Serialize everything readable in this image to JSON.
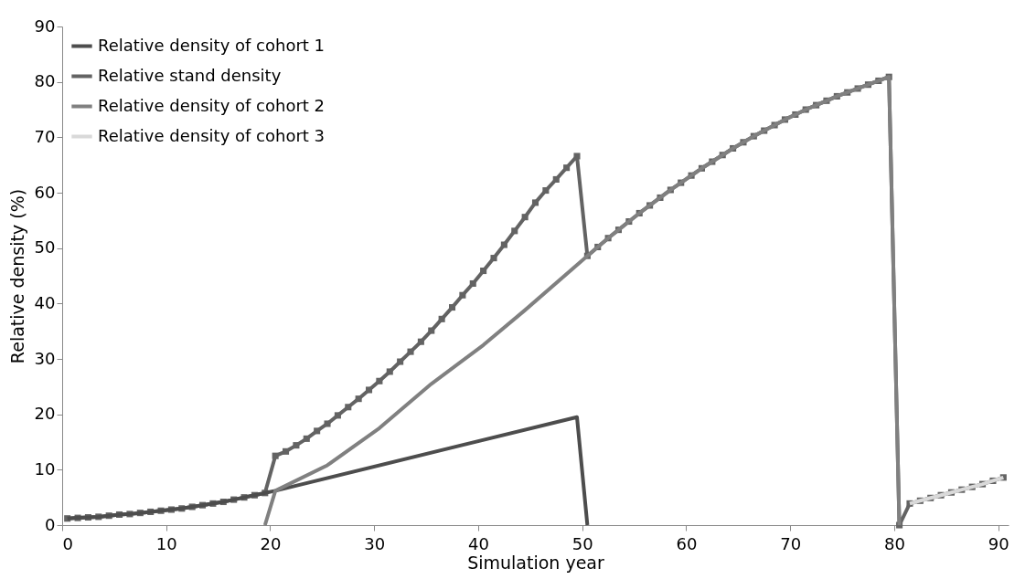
{
  "chart_data": {
    "type": "line",
    "xlabel": "Simulation year",
    "ylabel": "Relative density (%)",
    "xlim": [
      0,
      91
    ],
    "xticks": [
      0,
      10,
      20,
      30,
      40,
      50,
      60,
      70,
      80,
      90
    ],
    "ylim": [
      0,
      90
    ],
    "yticks": [
      0,
      10,
      20,
      30,
      40,
      50,
      60,
      70,
      80,
      90
    ],
    "grid": false,
    "legend": "top left",
    "line_style": "solid",
    "series": [
      {
        "name": "Relative stand density",
        "color": "#636363",
        "marker": "square",
        "x": [
          0.5,
          1.5,
          2.5,
          3.5,
          4.5,
          5.5,
          6.5,
          7.5,
          8.5,
          9.5,
          10.5,
          11.5,
          12.5,
          13.5,
          14.5,
          15.5,
          16.5,
          17.5,
          18.5,
          19.5,
          20.5,
          21.5,
          22.5,
          23.5,
          24.5,
          25.5,
          26.5,
          27.5,
          28.5,
          29.5,
          30.5,
          31.5,
          32.5,
          33.5,
          34.5,
          35.5,
          36.5,
          37.5,
          38.5,
          39.5,
          40.5,
          41.5,
          42.5,
          43.5,
          44.5,
          45.5,
          46.5,
          47.5,
          48.5,
          49.5,
          50.5,
          51.5,
          52.5,
          53.5,
          54.5,
          55.5,
          56.5,
          57.5,
          58.5,
          59.5,
          60.5,
          61.5,
          62.5,
          63.5,
          64.5,
          65.5,
          66.5,
          67.5,
          68.5,
          69.5,
          70.5,
          71.5,
          72.5,
          73.5,
          74.5,
          75.5,
          76.5,
          77.5,
          78.5,
          79.5,
          80.5,
          81.5,
          82.5,
          83.5,
          84.5,
          85.5,
          86.5,
          87.5,
          88.5,
          89.5,
          90.5
        ],
        "values": [
          1.2,
          1.3,
          1.4,
          1.5,
          1.7,
          1.9,
          2.0,
          2.2,
          2.4,
          2.6,
          2.8,
          3.0,
          3.3,
          3.6,
          3.9,
          4.2,
          4.6,
          5.0,
          5.4,
          5.8,
          12.5,
          13.3,
          14.4,
          15.6,
          17.0,
          18.3,
          19.8,
          21.3,
          22.8,
          24.4,
          26.0,
          27.7,
          29.5,
          31.3,
          33.1,
          35.1,
          37.2,
          39.3,
          41.5,
          43.6,
          45.9,
          48.2,
          50.6,
          53.1,
          55.6,
          58.2,
          60.4,
          62.4,
          64.5,
          66.6,
          48.6,
          50.2,
          51.8,
          53.3,
          54.8,
          56.3,
          57.7,
          59.1,
          60.5,
          61.8,
          63.1,
          64.4,
          65.6,
          66.8,
          68.0,
          69.1,
          70.2,
          71.2,
          72.2,
          73.2,
          74.1,
          75.0,
          75.8,
          76.6,
          77.4,
          78.1,
          78.8,
          79.5,
          80.2,
          80.9,
          0,
          3.9,
          4.4,
          4.9,
          5.4,
          5.9,
          6.4,
          6.9,
          7.4,
          8.0,
          8.6
        ]
      },
      {
        "name": "Relative density of cohort 1",
        "color": "#4d4d4d",
        "marker": "none",
        "x": [
          0.5,
          1.5,
          2.5,
          3.5,
          4.5,
          5.5,
          6.5,
          7.5,
          8.5,
          9.5,
          10.5,
          11.5,
          12.5,
          13.5,
          14.5,
          15.5,
          16.5,
          17.5,
          18.5,
          19.5,
          20.5,
          49.5,
          50.5
        ],
        "values": [
          1.2,
          1.3,
          1.4,
          1.5,
          1.7,
          1.9,
          2.0,
          2.2,
          2.4,
          2.6,
          2.8,
          3.0,
          3.3,
          3.6,
          3.9,
          4.2,
          4.6,
          5.0,
          5.4,
          5.8,
          6.2,
          19.5,
          0
        ]
      },
      {
        "name": "Relative density of cohort 2",
        "color": "#808080",
        "marker": "none",
        "x": [
          19.5,
          20.5,
          25.5,
          30.5,
          35.5,
          40.5,
          44.5,
          50.5,
          51.5,
          52.5,
          53.5,
          54.5,
          55.5,
          56.5,
          57.5,
          58.5,
          59.5,
          60.5,
          61.5,
          62.5,
          63.5,
          64.5,
          65.5,
          66.5,
          67.5,
          68.5,
          69.5,
          70.5,
          71.5,
          72.5,
          73.5,
          74.5,
          75.5,
          76.5,
          77.5,
          78.5,
          79.5,
          80.5
        ],
        "values": [
          0,
          6.2,
          10.8,
          17.5,
          25.5,
          32.5,
          38.8,
          48.6,
          50.2,
          51.8,
          53.3,
          54.8,
          56.3,
          57.7,
          59.1,
          60.5,
          61.8,
          63.1,
          64.4,
          65.6,
          66.8,
          68.0,
          69.1,
          70.2,
          71.2,
          72.2,
          73.2,
          74.1,
          75.0,
          75.8,
          76.6,
          77.4,
          78.1,
          78.8,
          79.5,
          80.2,
          80.9,
          0
        ]
      },
      {
        "name": "Relative density of cohort 3",
        "color": "#d9d9d9",
        "marker": "none",
        "x": [
          81.5,
          82.5,
          83.5,
          84.5,
          85.5,
          86.5,
          87.5,
          88.5,
          89.5,
          90.5
        ],
        "values": [
          3.9,
          4.4,
          4.9,
          5.4,
          5.9,
          6.4,
          6.9,
          7.4,
          8.0,
          8.6
        ]
      }
    ]
  }
}
